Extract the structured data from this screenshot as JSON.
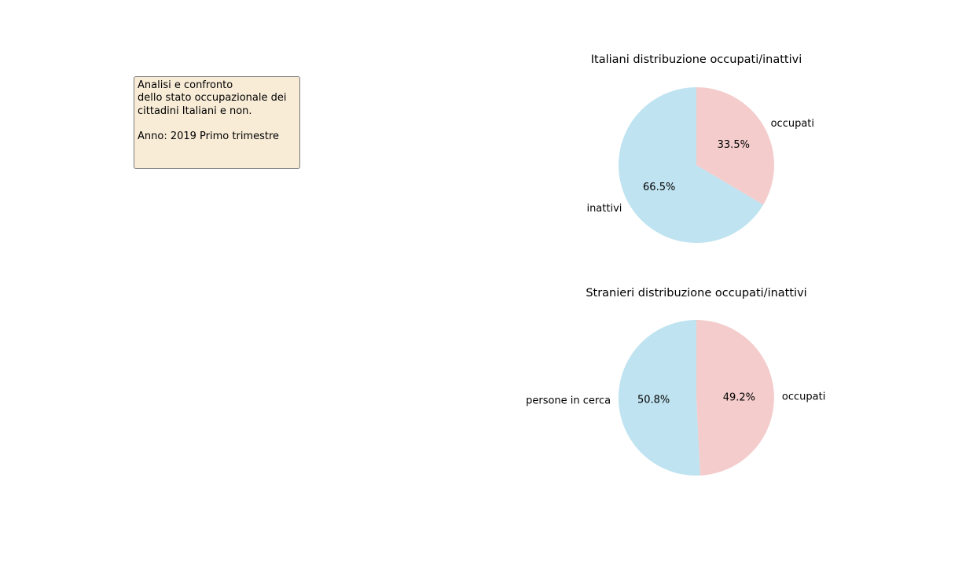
{
  "info_box": {
    "text": "Analisi e confronto\ndello stato occupazionale dei\ncittadini Italiani e non.\n\nAnno: 2019 Primo trimestre"
  },
  "colors": {
    "occupati": "#f4cccc",
    "other": "#bfe3f0",
    "info_box_bg": "#f8ecd7"
  },
  "chart_data": [
    {
      "type": "pie",
      "title": "Italiani distribuzione occupati/inattivi",
      "slices": [
        {
          "label": "occupati",
          "value": 33.5,
          "pct_label": "33.5%",
          "color": "#f4cccc"
        },
        {
          "label": "inattivi",
          "value": 66.5,
          "pct_label": "66.5%",
          "color": "#bfe3f0"
        }
      ],
      "start_angle_deg": 90,
      "direction": "clockwise"
    },
    {
      "type": "pie",
      "title": "Stranieri distribuzione occupati/inattivi",
      "slices": [
        {
          "label": "occupati",
          "value": 49.2,
          "pct_label": "49.2%",
          "color": "#f4cccc"
        },
        {
          "label": "persone in cerca",
          "value": 50.8,
          "pct_label": "50.8%",
          "color": "#bfe3f0"
        }
      ],
      "start_angle_deg": 90,
      "direction": "clockwise"
    }
  ]
}
